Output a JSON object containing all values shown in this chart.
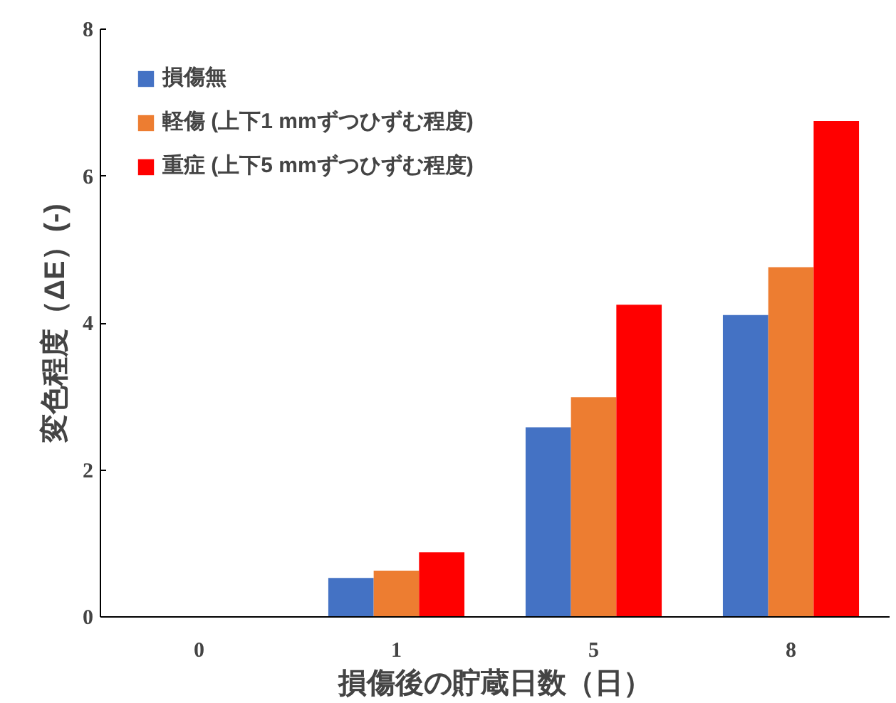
{
  "chart_data": {
    "type": "bar",
    "xlabel": "損傷後の貯蔵日数（日）",
    "ylabel": "変色程度（ΔE）(-)",
    "categories": [
      "0",
      "1",
      "5",
      "8"
    ],
    "series": [
      {
        "name": "損傷無",
        "color": "#4472c4",
        "values": [
          0,
          0.53,
          2.58,
          4.11
        ]
      },
      {
        "name": "軽傷 (上下1 mmずつひずむ程度)",
        "color": "#ed7d31",
        "values": [
          0,
          0.63,
          2.99,
          4.76
        ]
      },
      {
        "name": "重症 (上下5 mmずつひずむ程度)",
        "color": "#ff0000",
        "values": [
          0,
          0.88,
          4.25,
          6.75
        ]
      }
    ],
    "ylim": [
      0,
      8
    ],
    "yticks": [
      0,
      2,
      4,
      6,
      8
    ],
    "grid": false,
    "legend": "top left"
  }
}
